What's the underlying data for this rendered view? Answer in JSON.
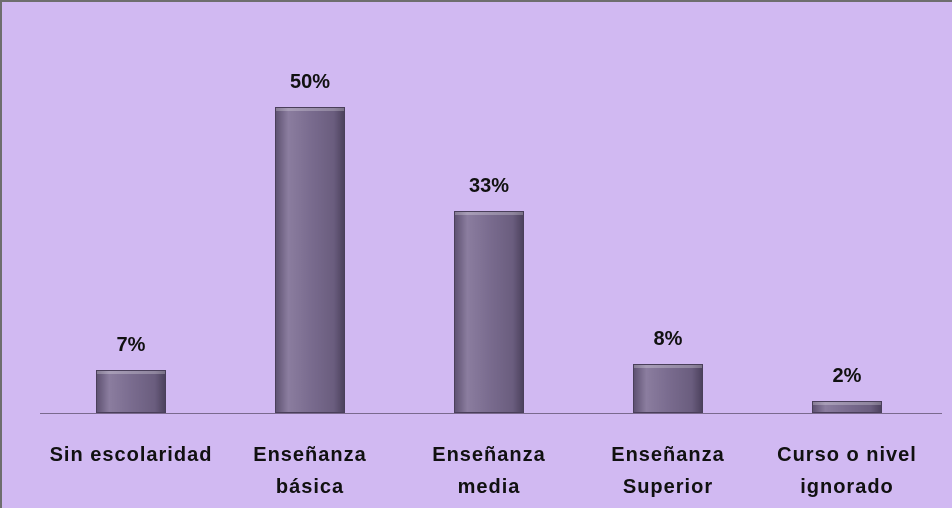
{
  "chart_data": {
    "type": "bar",
    "categories": [
      "Sin escolaridad",
      "Enseñanza básica",
      "Enseñanza media",
      "Enseñanza Superior",
      "Curso o nivel ignorado"
    ],
    "values": [
      7,
      50,
      33,
      8,
      2
    ],
    "value_labels": [
      "7%",
      "50%",
      "33%",
      "8%",
      "2%"
    ],
    "color": "#7a6c8f"
  }
}
